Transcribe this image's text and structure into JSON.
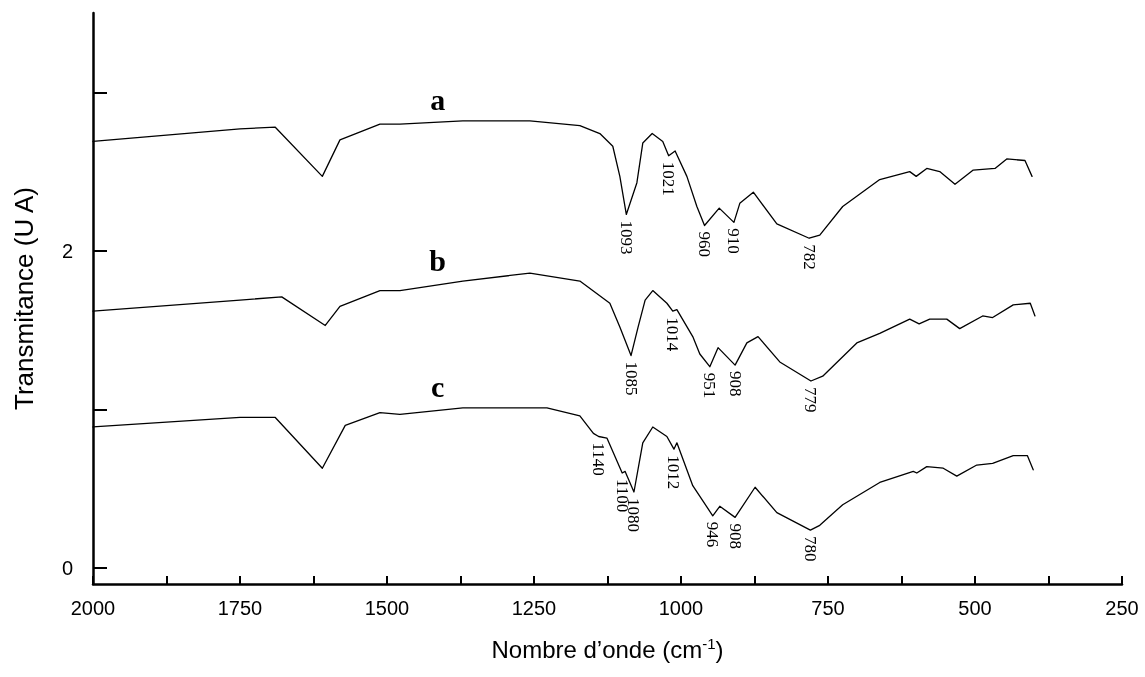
{
  "chart_data": {
    "type": "line",
    "xlabel": "Nombre d’onde (cm$^{-1}$)",
    "ylabel": "Transmitance (U A)",
    "xlim": [
      2000,
      250
    ],
    "xticks": [
      2000,
      {
        "value": 1875,
        "label": null
      },
      1750,
      {
        "value": 1625,
        "label": null
      },
      1500,
      {
        "value": 1375,
        "label": null
      },
      1250,
      {
        "value": 1125,
        "label": null
      },
      1000,
      {
        "value": 875,
        "label": null
      },
      750,
      {
        "value": 625,
        "label": null
      },
      500,
      {
        "value": 375,
        "label": null
      },
      250
    ],
    "ylim": [
      -0.1,
      3.5
    ],
    "yticks": [
      0,
      {
        "value": 1,
        "label": null
      },
      2,
      {
        "value": 3,
        "label": null
      }
    ],
    "grid": false,
    "legend": false,
    "marker": "none",
    "line_style": "solid",
    "series": [
      {
        "name": "a",
        "color": "#000000",
        "x": [
          2000,
          1750,
          1690,
          1610,
          1580,
          1512,
          1478,
          1371,
          1257,
          1172,
          1138,
          1116,
          1104,
          1093,
          1075,
          1065,
          1049,
          1031,
          1021,
          1010,
          990,
          973,
          960,
          935,
          910,
          900,
          877,
          837,
          782,
          764,
          725,
          662,
          611,
          600,
          582,
          560,
          534,
          503,
          466,
          446,
          415,
          403
        ],
        "values": [
          2.69,
          2.77,
          2.78,
          2.47,
          2.7,
          2.8,
          2.8,
          2.82,
          2.82,
          2.79,
          2.74,
          2.66,
          2.47,
          2.23,
          2.43,
          2.68,
          2.74,
          2.69,
          2.6,
          2.63,
          2.47,
          2.28,
          2.16,
          2.27,
          2.18,
          2.3,
          2.37,
          2.17,
          2.08,
          2.1,
          2.28,
          2.45,
          2.5,
          2.47,
          2.52,
          2.5,
          2.42,
          2.51,
          2.52,
          2.58,
          2.57,
          2.47
        ]
      },
      {
        "name": "b",
        "color": "#000000",
        "x": [
          2000,
          1750,
          1679,
          1605,
          1580,
          1512,
          1478,
          1371,
          1257,
          1172,
          1121,
          1104,
          1085,
          1073,
          1061,
          1048,
          1024,
          1014,
          1007,
          980,
          968,
          951,
          937,
          908,
          888,
          869,
          832,
          779,
          759,
          701,
          662,
          611,
          595,
          577,
          548,
          526,
          487,
          470,
          435,
          406,
          398
        ],
        "values": [
          1.62,
          1.69,
          1.71,
          1.53,
          1.65,
          1.75,
          1.75,
          1.81,
          1.86,
          1.81,
          1.67,
          1.52,
          1.34,
          1.52,
          1.69,
          1.75,
          1.67,
          1.62,
          1.63,
          1.46,
          1.35,
          1.27,
          1.39,
          1.28,
          1.42,
          1.46,
          1.3,
          1.18,
          1.21,
          1.42,
          1.48,
          1.57,
          1.54,
          1.57,
          1.57,
          1.51,
          1.59,
          1.58,
          1.66,
          1.67,
          1.59
        ]
      },
      {
        "name": "c",
        "color": "#000000",
        "x": [
          2000,
          1750,
          1690,
          1610,
          1571,
          1512,
          1478,
          1371,
          1228,
          1172,
          1149,
          1140,
          1126,
          1100,
          1095,
          1080,
          1065,
          1048,
          1024,
          1012,
          1007,
          980,
          946,
          934,
          908,
          874,
          837,
          780,
          764,
          725,
          662,
          605,
          599,
          582,
          554,
          531,
          497,
          470,
          435,
          411,
          401
        ],
        "values": [
          0.89,
          0.95,
          0.95,
          0.63,
          0.9,
          0.98,
          0.97,
          1.01,
          1.01,
          0.96,
          0.85,
          0.83,
          0.82,
          0.6,
          0.61,
          0.48,
          0.79,
          0.89,
          0.83,
          0.75,
          0.79,
          0.52,
          0.33,
          0.39,
          0.32,
          0.51,
          0.35,
          0.24,
          0.27,
          0.4,
          0.54,
          0.61,
          0.6,
          0.64,
          0.63,
          0.58,
          0.65,
          0.66,
          0.71,
          0.71,
          0.62
        ]
      }
    ],
    "annotations": [
      {
        "text": "1093",
        "x": 1093,
        "y": 2.23
      },
      {
        "text": "1021",
        "x": 1021,
        "y": 2.6
      },
      {
        "text": "960",
        "x": 960,
        "y": 2.16
      },
      {
        "text": "910",
        "x": 910,
        "y": 2.18
      },
      {
        "text": "782",
        "x": 782,
        "y": 2.08
      },
      {
        "text": "1085",
        "x": 1085,
        "y": 1.34
      },
      {
        "text": "1014",
        "x": 1014,
        "y": 1.62
      },
      {
        "text": "951",
        "x": 951,
        "y": 1.27
      },
      {
        "text": "908",
        "x": 908,
        "y": 1.28
      },
      {
        "text": "779",
        "x": 779,
        "y": 1.18
      },
      {
        "text": "1140",
        "x": 1140,
        "y": 0.83
      },
      {
        "text": "1100",
        "x": 1100,
        "y": 0.6
      },
      {
        "text": "1080",
        "x": 1080,
        "y": 0.48
      },
      {
        "text": "1012",
        "x": 1012,
        "y": 0.75
      },
      {
        "text": "946",
        "x": 946,
        "y": 0.33
      },
      {
        "text": "908",
        "x": 908,
        "y": 0.32
      },
      {
        "text": "780",
        "x": 780,
        "y": 0.24
      }
    ]
  }
}
